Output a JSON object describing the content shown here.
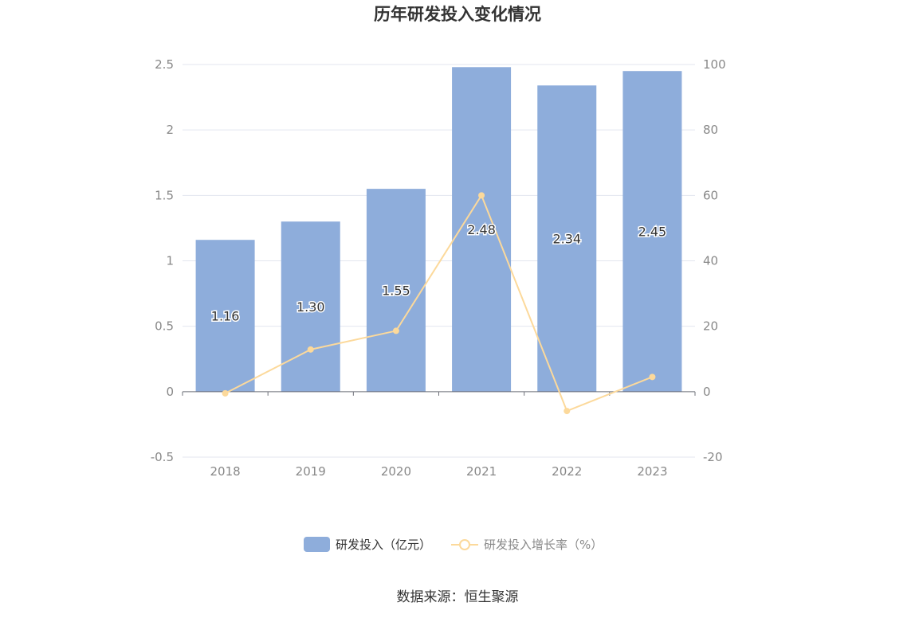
{
  "chart_data": {
    "type": "bar",
    "title": "历年研发投入变化情况",
    "categories": [
      "2018",
      "2019",
      "2020",
      "2021",
      "2022",
      "2023"
    ],
    "series": [
      {
        "name": "研发投入（亿元）",
        "type": "bar",
        "axis": "left",
        "color": "#8eaddb",
        "values": [
          1.16,
          1.3,
          1.55,
          2.48,
          2.34,
          2.45
        ],
        "labels": [
          "1.16",
          "1.30",
          "1.55",
          "2.48",
          "2.34",
          "2.45"
        ]
      },
      {
        "name": "研发投入增长率（%）",
        "type": "line",
        "axis": "right",
        "color": "#fcd99b",
        "values": [
          -0.5,
          12.9,
          18.6,
          60.0,
          -5.9,
          4.5
        ]
      }
    ],
    "left_axis": {
      "min": -0.5,
      "max": 2.5,
      "ticks": [
        "-0.5",
        "0",
        "0.5",
        "1",
        "1.5",
        "2",
        "2.5"
      ]
    },
    "right_axis": {
      "min": -20,
      "max": 100,
      "ticks": [
        "-20",
        "0",
        "20",
        "40",
        "60",
        "80",
        "100"
      ]
    },
    "grid": true,
    "legend_position": "bottom"
  },
  "source": "数据来源：恒生聚源"
}
